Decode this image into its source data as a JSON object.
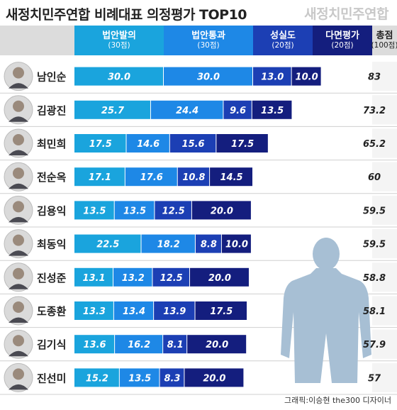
{
  "title": "새정치민주연합 비례대표 의정평가 TOP10",
  "brand": "새정치민주연합",
  "credit": "그래픽:이승현 the300 디자이너",
  "colors": {
    "c1": "#1aa4dd",
    "c2": "#1e88e6",
    "c3": "#1c3fb4",
    "c4": "#141e7e",
    "silhouette": "#a7bfd4"
  },
  "chart_data": {
    "type": "bar",
    "stacked": true,
    "orientation": "horizontal",
    "title": "새정치민주연합 비례대표 의정평가 TOP10",
    "categories": [
      "남인순",
      "김광진",
      "최민희",
      "전순옥",
      "김용익",
      "최동익",
      "진성준",
      "도종환",
      "김기식",
      "진선미"
    ],
    "headers": [
      {
        "name": "법안발의",
        "sub": "(30점)"
      },
      {
        "name": "법안통과",
        "sub": "(30점)"
      },
      {
        "name": "성실도",
        "sub": "(20점)"
      },
      {
        "name": "다면평가",
        "sub": "(20점)"
      }
    ],
    "total_header": {
      "name": "총점",
      "sub": "(100점)"
    },
    "series": [
      {
        "name": "법안발의",
        "values": [
          30.0,
          25.7,
          17.5,
          17.1,
          13.5,
          22.5,
          13.1,
          13.3,
          13.6,
          15.2
        ],
        "labels": [
          "30.0",
          "25.7",
          "17.5",
          "17.1",
          "13.5",
          "22.5",
          "13.1",
          "13.3",
          "13.6",
          "15.2"
        ]
      },
      {
        "name": "법안통과",
        "values": [
          30.0,
          24.4,
          14.6,
          17.6,
          13.5,
          18.2,
          13.2,
          13.4,
          16.2,
          13.5
        ],
        "labels": [
          "30.0",
          "24.4",
          "14.6",
          "17.6",
          "13.5",
          "18.2",
          "13.2",
          "13.4",
          "16.2",
          "13.5"
        ]
      },
      {
        "name": "성실도",
        "values": [
          13.0,
          9.6,
          15.6,
          10.8,
          12.5,
          8.8,
          12.5,
          13.9,
          8.1,
          8.3
        ],
        "labels": [
          "13.0",
          "9.6",
          "15.6",
          "10.8",
          "12.5",
          "8.8",
          "12.5",
          "13.9",
          "8.1",
          "8.3"
        ]
      },
      {
        "name": "다면평가",
        "values": [
          10.0,
          13.5,
          17.5,
          14.5,
          20.0,
          10.0,
          20.0,
          17.5,
          20.0,
          20.0
        ],
        "labels": [
          "10.0",
          "13.5",
          "17.5",
          "14.5",
          "20.0",
          "10.0",
          "20.0",
          "17.5",
          "20.0",
          "20.0"
        ]
      }
    ],
    "totals": [
      "83",
      "73.2",
      "65.2",
      "60",
      "59.5",
      "59.5",
      "58.8",
      "58.1",
      "57.9",
      "57"
    ],
    "xlim": [
      0,
      100
    ]
  }
}
